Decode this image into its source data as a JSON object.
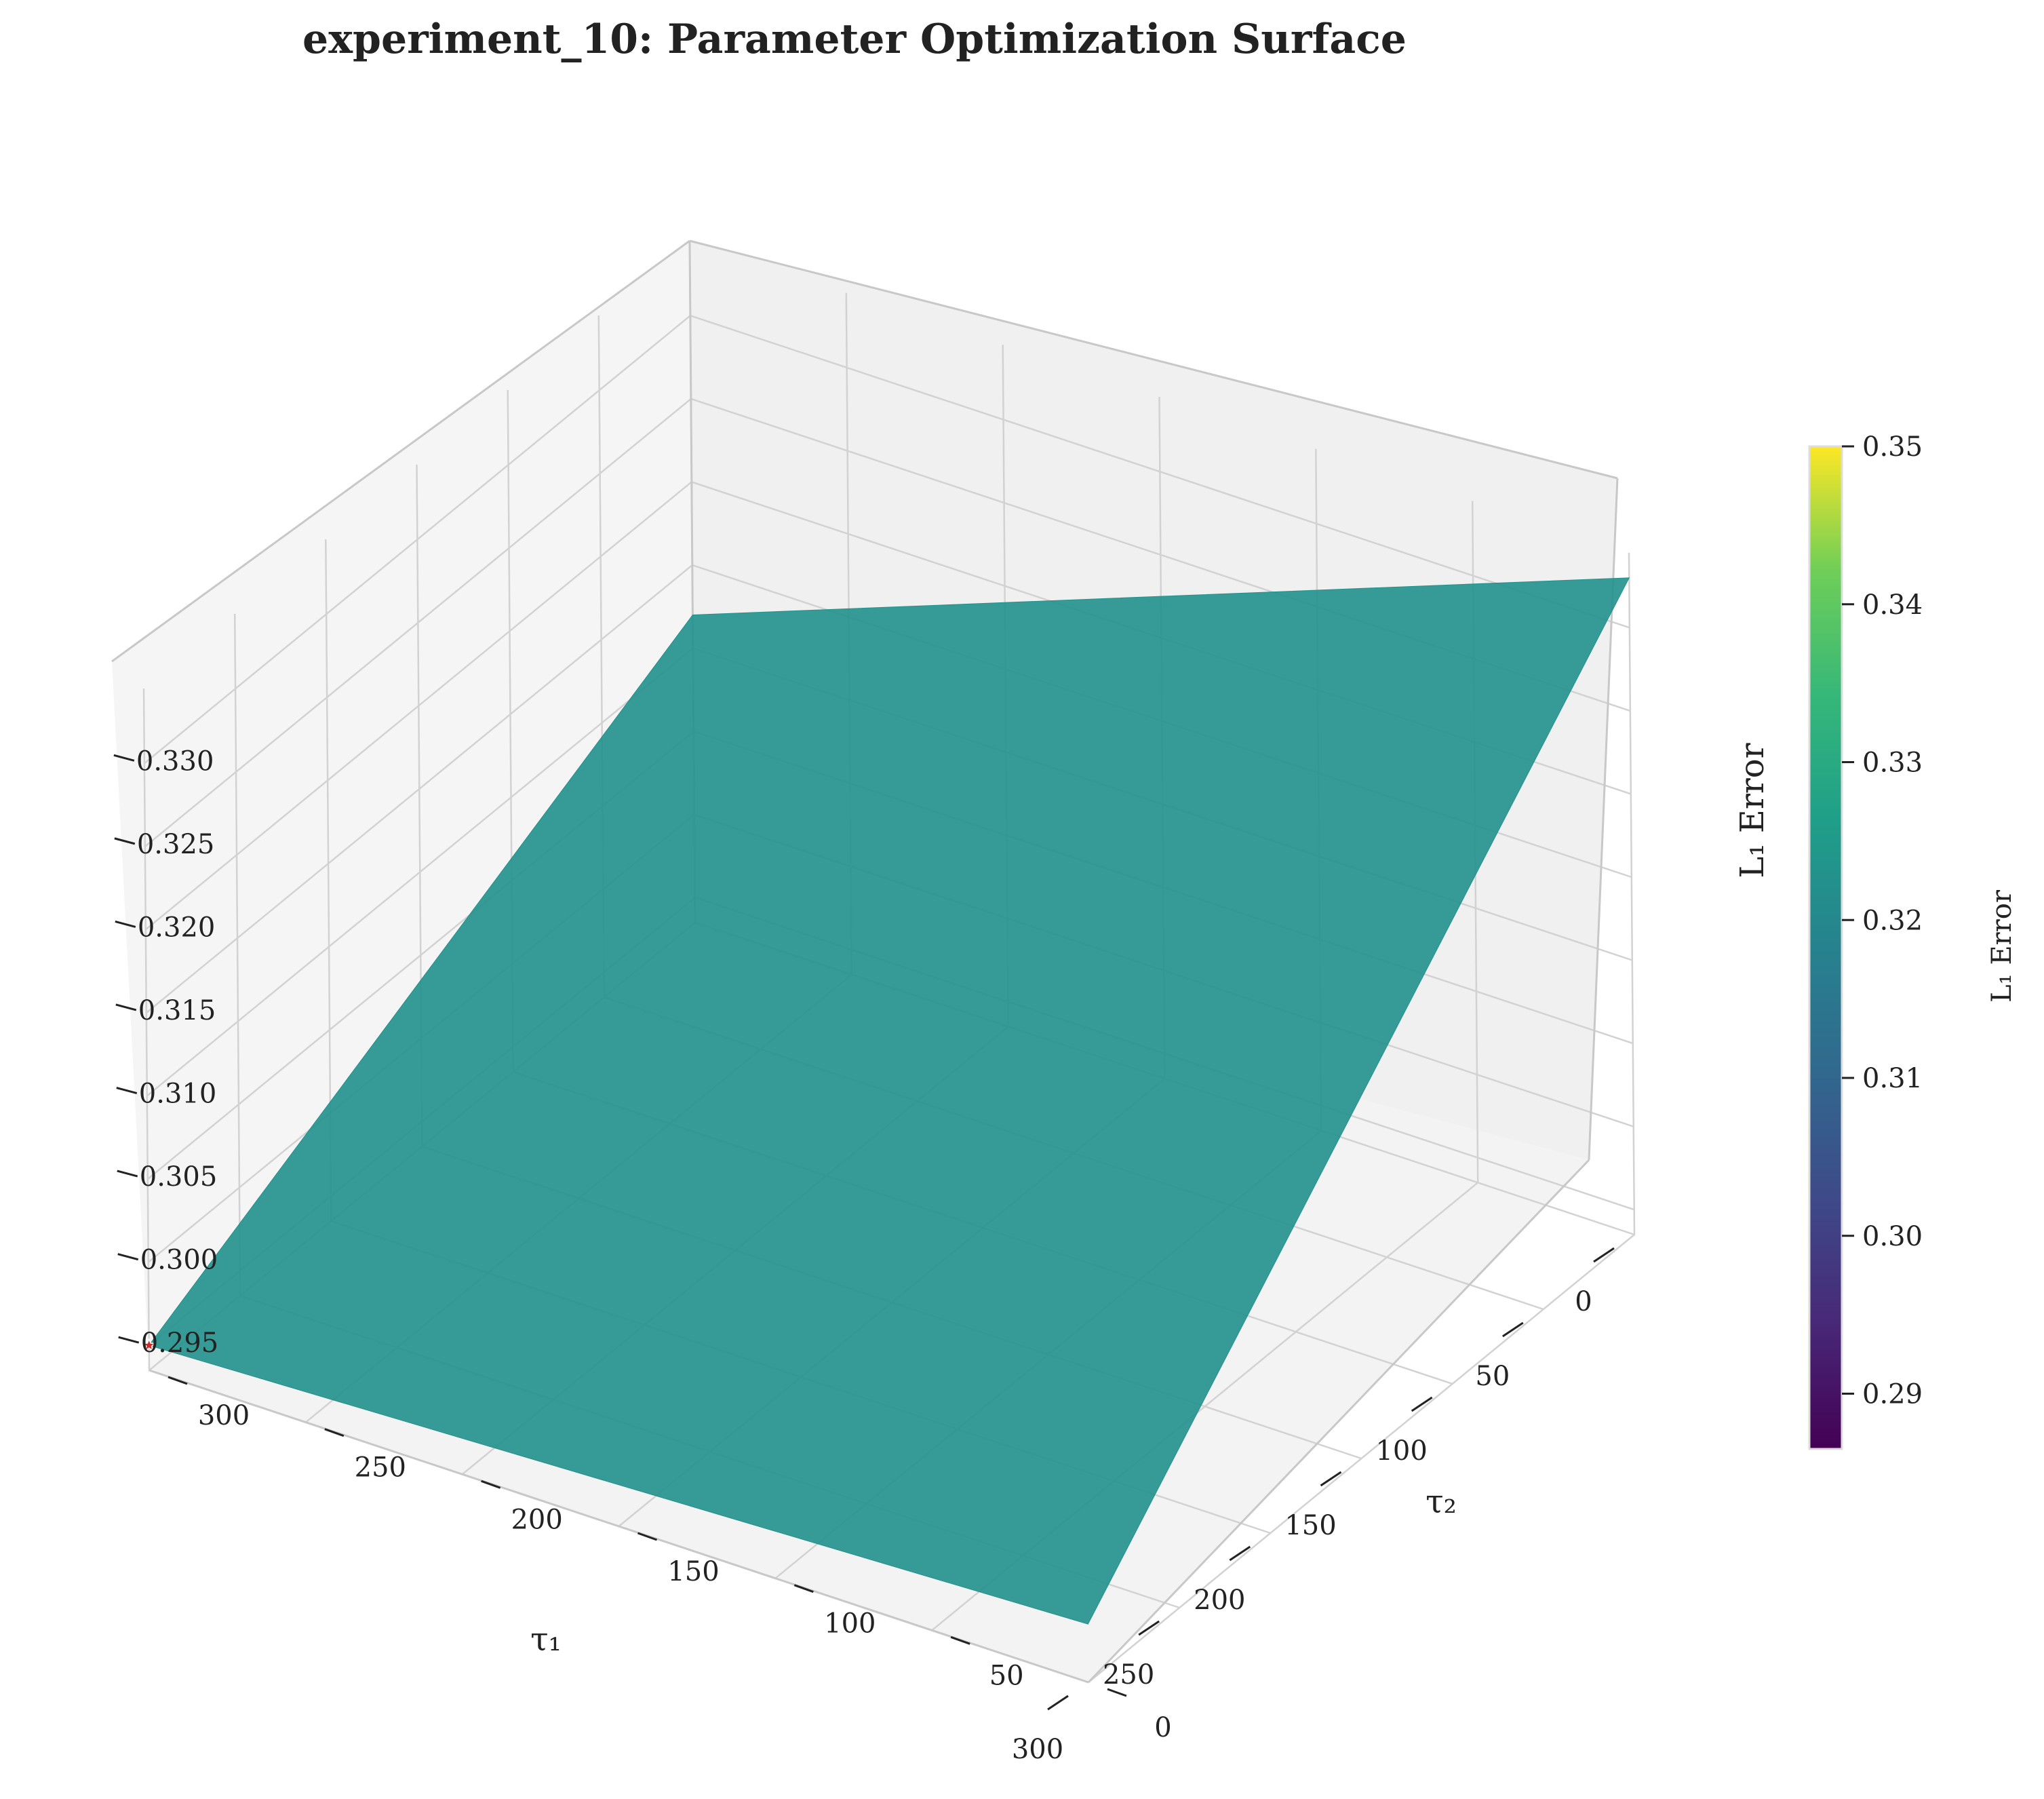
{
  "chart_data": {
    "type": "surface3d",
    "title": "experiment_10: Parameter Optimization Surface",
    "xlabel": "τ₁",
    "ylabel": "τ₂",
    "zlabel": "L₁ Error",
    "x_ticks": [
      "0",
      "50",
      "100",
      "150",
      "200",
      "250",
      "300"
    ],
    "y_ticks": [
      "0",
      "50",
      "100",
      "150",
      "200",
      "250",
      "300"
    ],
    "z_ticks": [
      "0.295",
      "0.300",
      "0.305",
      "0.310",
      "0.315",
      "0.320",
      "0.325",
      "0.330"
    ],
    "x_values": [
      0,
      300
    ],
    "y_values": [
      0,
      300
    ],
    "z_grid": [
      [
        0.333,
        0.312
      ],
      [
        0.297,
        0.295
      ]
    ],
    "surface_color": "#21918c",
    "optimum": {
      "x": 300,
      "y": 300,
      "z": 0.295,
      "color": "#d62728",
      "marker": "star"
    },
    "colorbar": {
      "label": "L₁ Error",
      "cmap": "viridis",
      "range": [
        0.2865,
        0.35
      ],
      "ticks": [
        "0.29",
        "0.30",
        "0.31",
        "0.32",
        "0.33",
        "0.34",
        "0.35"
      ]
    },
    "grid": true
  }
}
